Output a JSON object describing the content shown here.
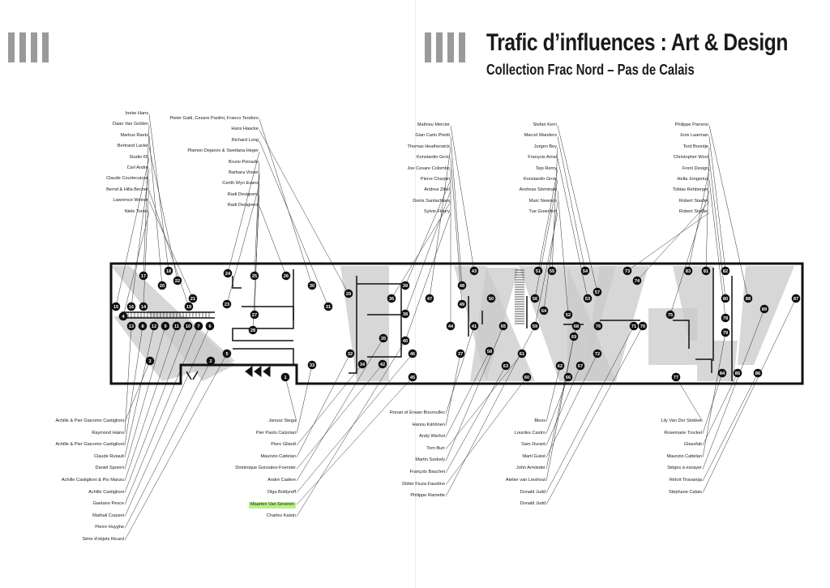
{
  "header": {
    "title": "Trafic d’influences : Art & Design",
    "subtitle": "Collection Frac Nord – Pas de Calais"
  },
  "colors": {
    "ink": "#111111",
    "zone": "#c9c9c9",
    "bars": "#9a9a9a",
    "highlight": "#b8f08a"
  },
  "room_numbers": [
    "1",
    "2",
    "3",
    "4",
    "5",
    "6",
    "7",
    "8",
    "9",
    "10",
    "11",
    "12",
    "13",
    "14",
    "15",
    "16",
    "17",
    "18",
    "19",
    "20",
    "21",
    "22",
    "23",
    "24",
    "25",
    "26",
    "27",
    "28",
    "29",
    "30",
    "31",
    "32",
    "33",
    "34",
    "35",
    "36",
    "37",
    "38",
    "39",
    "40",
    "41",
    "42",
    "43",
    "44",
    "45",
    "46",
    "47",
    "48",
    "49",
    "50",
    "51",
    "52",
    "53",
    "54",
    "55",
    "56",
    "57",
    "58",
    "59",
    "60",
    "61",
    "62",
    "63",
    "64",
    "65",
    "66",
    "67",
    "68",
    "69",
    "70",
    "71",
    "72",
    "73",
    "74",
    "75",
    "76",
    "77",
    "78",
    "79",
    "80",
    "81",
    "82",
    "83",
    "84",
    "85",
    "86",
    "87",
    "88",
    "89"
  ],
  "credits": {
    "top_left": [
      "Ineke Hans",
      "Daan Van Golden",
      "Markus Raetz",
      "Bertrand Lavier",
      "Studio 65",
      "Carl Andre",
      "Claude Courtecuisse",
      "Bernd & Hilla Becher",
      "Lawrence Weiner",
      "Niele Toroni"
    ],
    "top_left_mid": [
      "Pieter Gatti, Cesare Paolini, Franco Teodoro",
      "Hans Haacke",
      "Richard Long",
      "Plamen Dejanov & Swetlana Heger",
      "Bruno Peinado",
      "Barbara Visser",
      "Cerith Wyn Evans",
      "Radi Designers",
      "Radi Designers"
    ],
    "top_center": [
      "Mathieu Mercier",
      "Gian Carlo Piretti",
      "Thomas Heatherwick",
      "Konstantin Grcic",
      "Joe Cesare Colombo",
      "Pierre Charpin",
      "Andrea Zittel",
      "Denis Santachiara",
      "Sylvie Fleury"
    ],
    "top_right_mid": [
      "Stefan Kern",
      "Marcel Wanders",
      "Jurgen Bey",
      "François Arnal",
      "Tejo Remy",
      "Konstantin Grcic",
      "Andreas Slominski",
      "Marc Newson",
      "Tue Greenfort"
    ],
    "top_right": [
      "Philippe Parreno",
      "Joris Laarman",
      "Tord Boontje",
      "Christopher Wool",
      "Front Design",
      "Hella Jongerius",
      "Tobias Rehberger",
      "Robert Stadler",
      "Robert Stadler"
    ],
    "bottom_left": [
      "Achille & Pier Giacomo Castiglioni",
      "Raymond Hains",
      "Achille & Pier Giacomo Castiglioni",
      "Claude Rutault",
      "Daniel Spoerri",
      "Achille Castiglioni & Pio Manzu",
      "Achille Castiglioni",
      "Gaetano Pesce",
      "Mathali Crasset",
      "Pierre Huyghe",
      "Série d'objets Ricard"
    ],
    "bottom_left_mid": [
      "Janusz Stega",
      "Pier Paolo Calzolari",
      "Piero Gilardi",
      "Maurizio Cattelan",
      "Dominique Gonzalez-Foerster",
      "André Cadere",
      "Olga Boldyreff",
      "Maarten Van Severen",
      "Charles Kaisin"
    ],
    "bottom_center": [
      "Ronan et Erwan Bouroullec",
      "Hannu Kähönen",
      "Andy Warhol",
      "Tom Burr",
      "Martin Szekely",
      "François Bauchet",
      "Didier Fiuza Faustino",
      "Philippe Ramette"
    ],
    "bottom_right_mid": [
      "Bless",
      "Lourdes Castro",
      "Sam Durant",
      "Marti Guixé",
      "John Armleder",
      "Atelier van Lieshout",
      "Donald Judd",
      "Donald Judd"
    ],
    "bottom_right": [
      "Lily Van Der Stokker",
      "Rosemarie Trockel",
      "Glassfab",
      "Maurizio Cattelan",
      "Sièges à essayer",
      "Rirkrit Tiravanija",
      "Stéphane Calais"
    ]
  }
}
